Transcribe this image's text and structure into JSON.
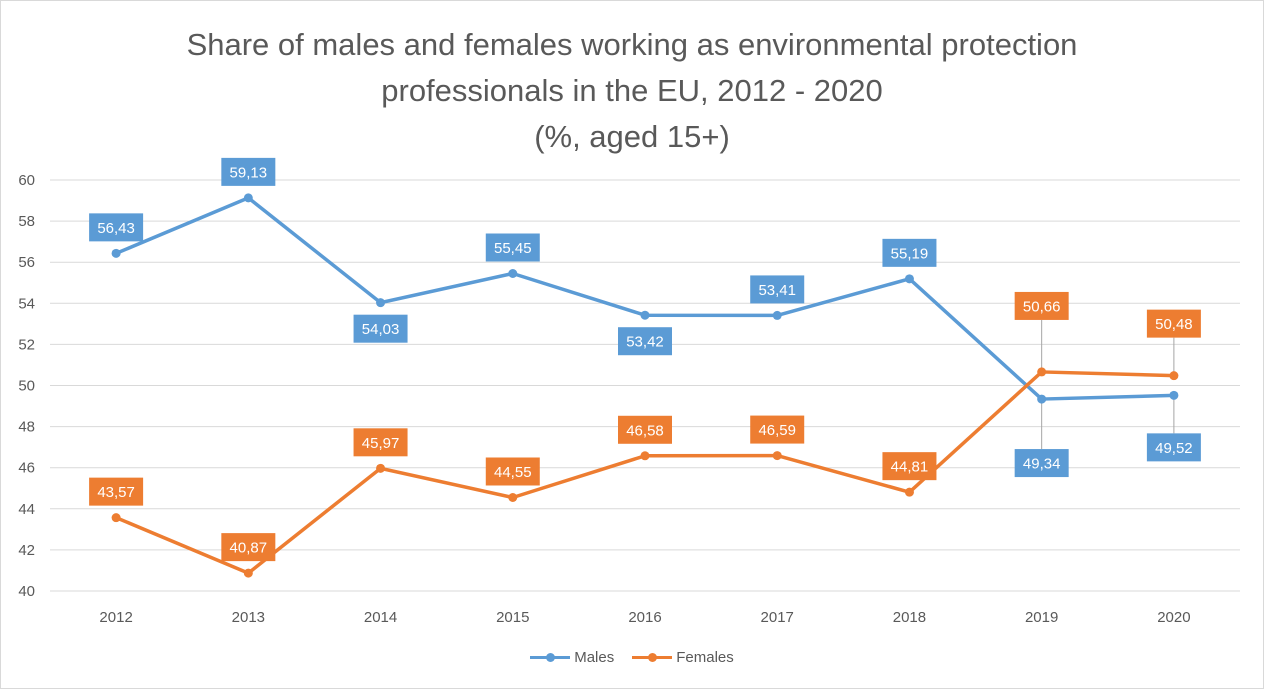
{
  "chart_data": {
    "type": "line",
    "title_lines": [
      "Share of males and females working as environmental protection",
      "professionals in the EU, 2012 - 2020",
      "(%, aged 15+)"
    ],
    "categories": [
      "2012",
      "2013",
      "2014",
      "2015",
      "2016",
      "2017",
      "2018",
      "2019",
      "2020"
    ],
    "y_ticks": [
      "40",
      "42",
      "44",
      "46",
      "48",
      "50",
      "52",
      "54",
      "56",
      "58",
      "60"
    ],
    "ylim": [
      40,
      60
    ],
    "grid": "horizontal",
    "legend_position": "bottom",
    "series": [
      {
        "name": "Males",
        "color": "#5b9bd5",
        "values": [
          56.43,
          59.13,
          54.03,
          55.45,
          53.42,
          53.41,
          55.19,
          49.34,
          49.52
        ],
        "labels": [
          "56,43",
          "59,13",
          "54,03",
          "55,45",
          "53,42",
          "53,41",
          "55,19",
          "49,34",
          "49,52"
        ]
      },
      {
        "name": "Females",
        "color": "#ed7d31",
        "values": [
          43.57,
          40.87,
          45.97,
          44.55,
          46.58,
          46.59,
          44.81,
          50.66,
          50.48
        ],
        "labels": [
          "43,57",
          "40,87",
          "45,97",
          "44,55",
          "46,58",
          "46,59",
          "44,81",
          "50,66",
          "50,48"
        ]
      }
    ]
  }
}
